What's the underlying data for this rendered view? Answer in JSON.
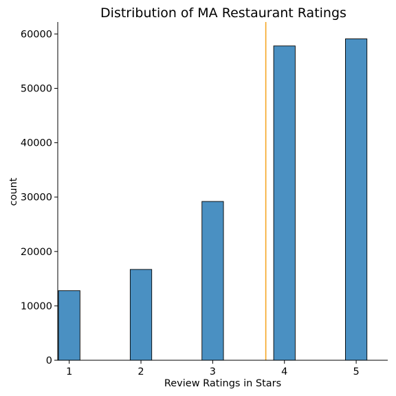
{
  "chart_data": {
    "type": "bar",
    "title": "Distribution of MA Restaurant Ratings",
    "xlabel": "Review Ratings in Stars",
    "ylabel": "count",
    "categories": [
      1,
      2,
      3,
      4,
      5
    ],
    "values": [
      12800,
      16700,
      29200,
      57800,
      59100
    ],
    "bar_width": 0.3,
    "xlim": [
      0.84,
      5.44
    ],
    "ylim": [
      0,
      62200
    ],
    "x_ticks": [
      1,
      2,
      3,
      4,
      5
    ],
    "y_ticks": [
      0,
      10000,
      20000,
      30000,
      40000,
      50000,
      60000
    ],
    "reference_line": {
      "x": 3.74,
      "color": "#f5a623"
    },
    "bar_color": "#4a90c2",
    "grid": false,
    "legend": "none"
  }
}
